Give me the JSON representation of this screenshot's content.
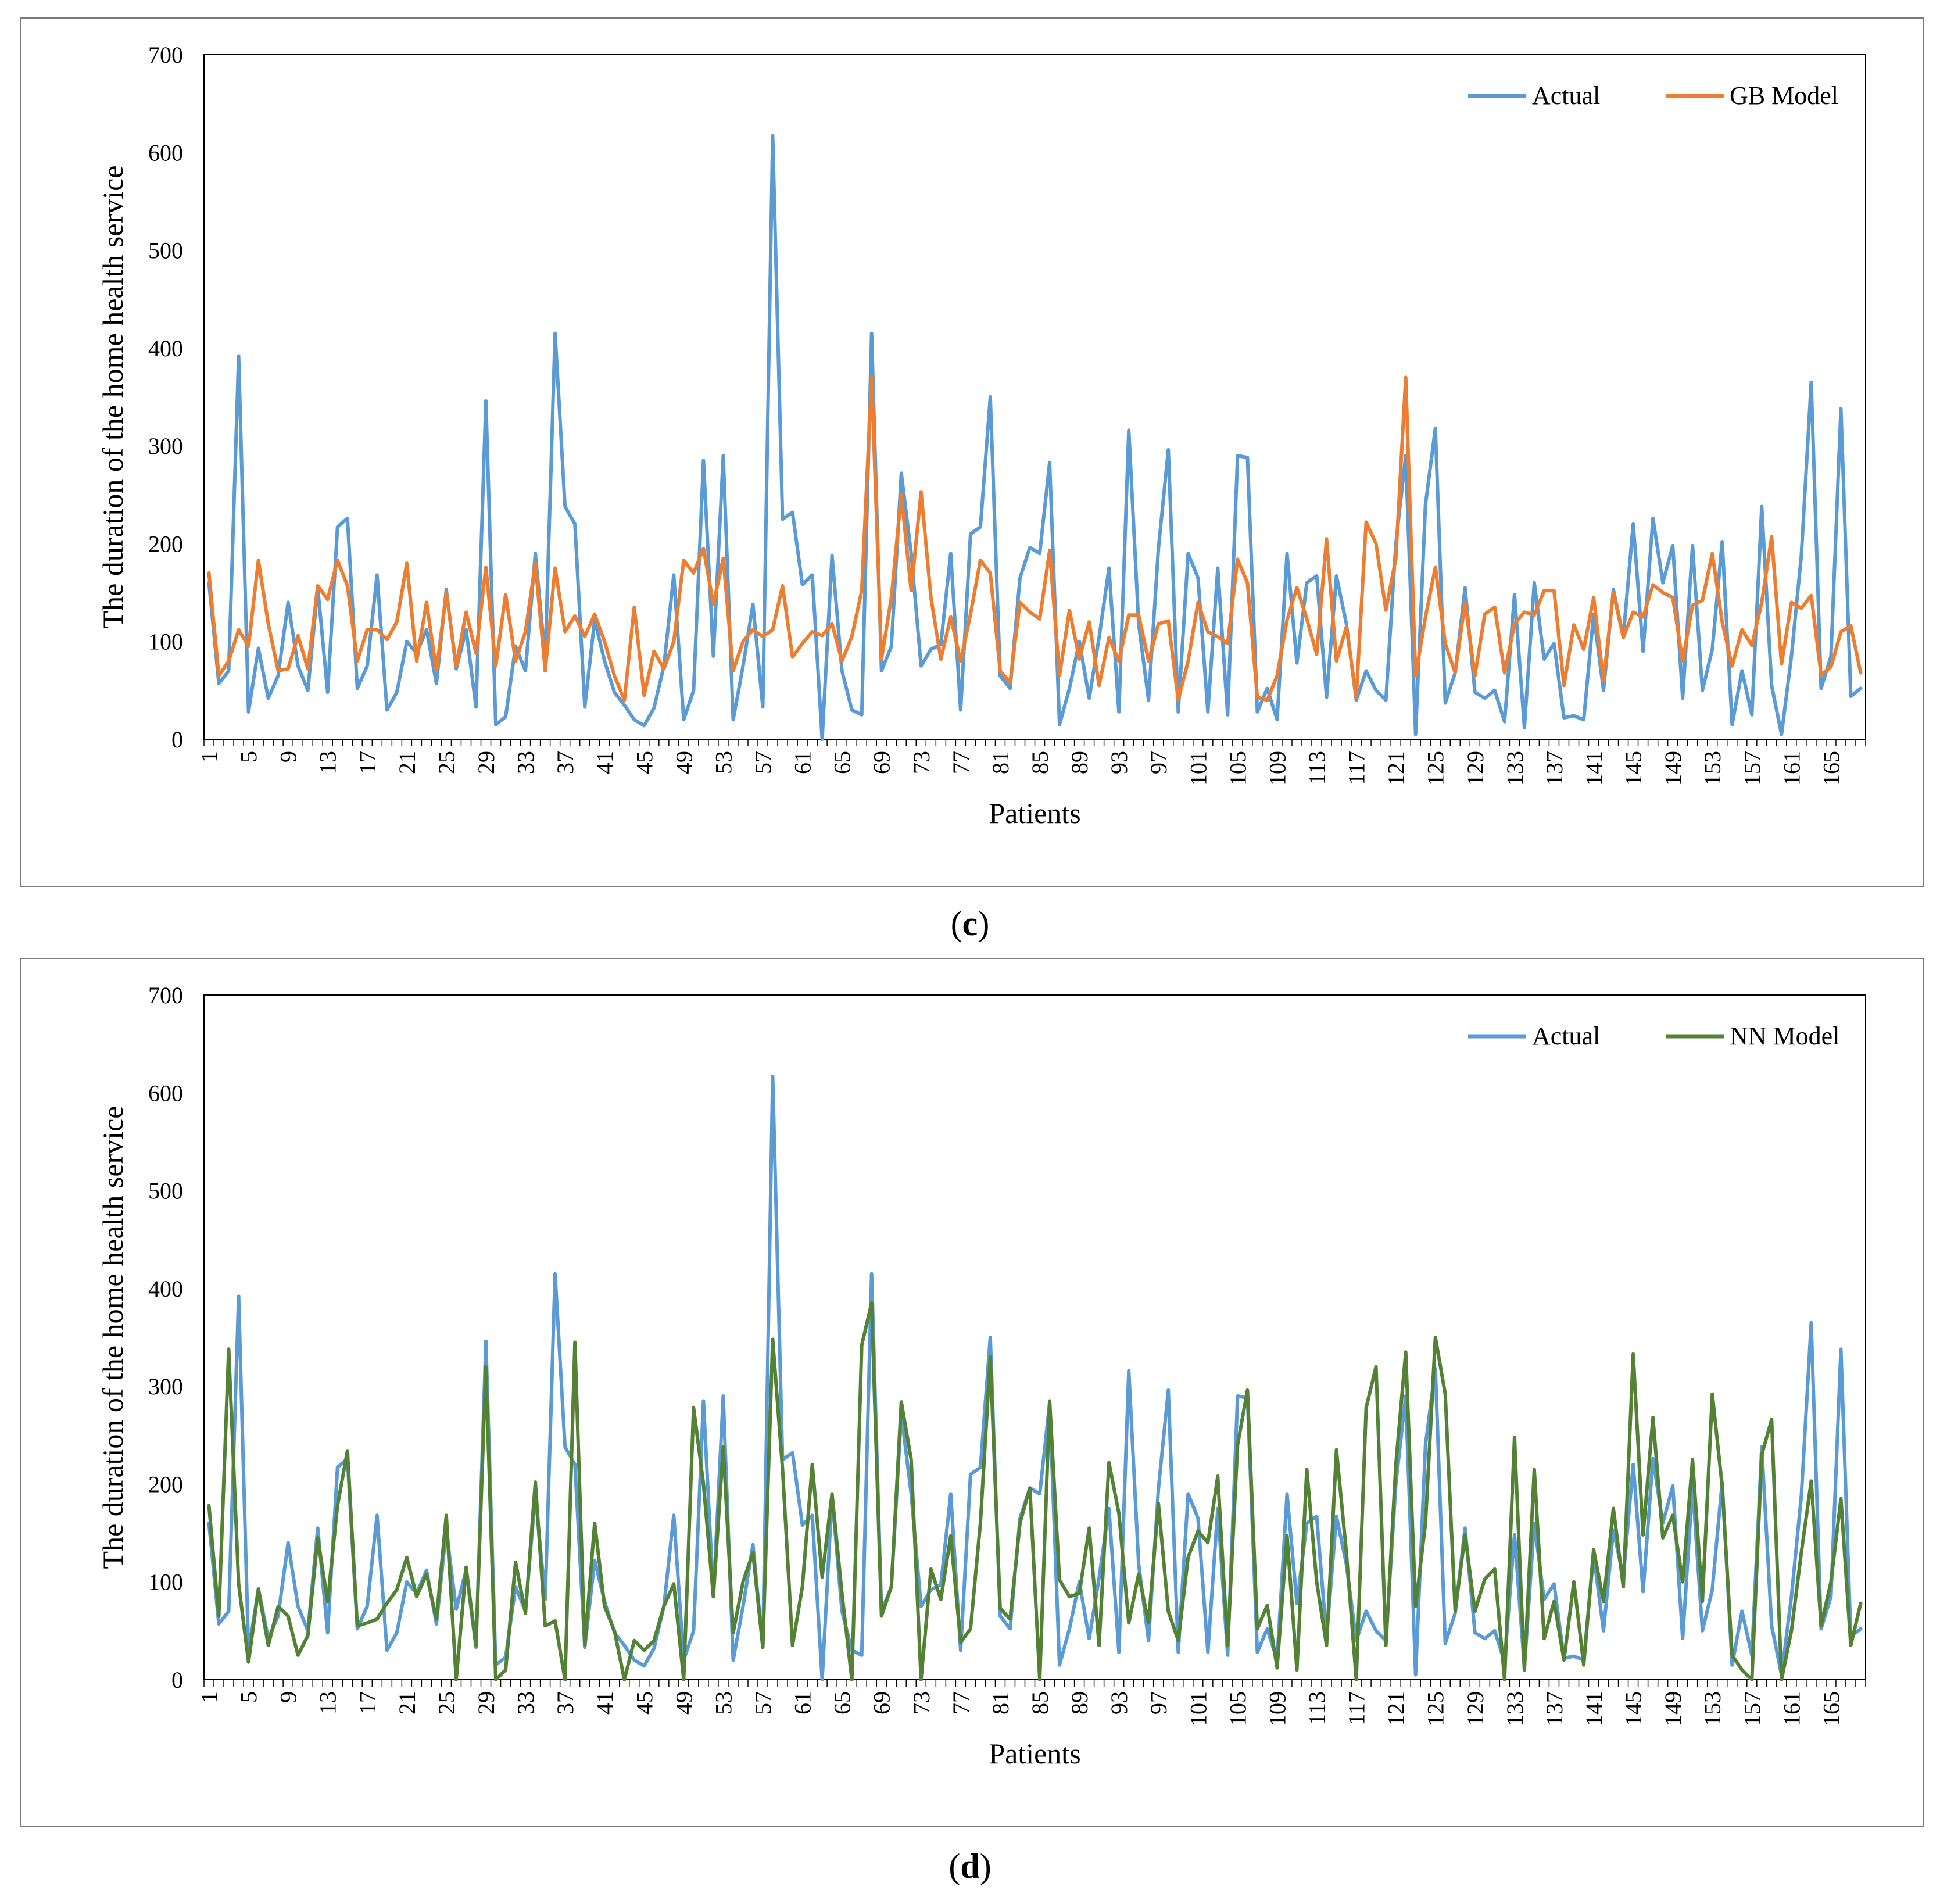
{
  "chart_data": [
    {
      "type": "line",
      "panel_label": "c",
      "xlabel": "Patients",
      "ylabel": "The duration of the home health service",
      "ylim": [
        0,
        700
      ],
      "yticks": [
        "0",
        "100",
        "200",
        "300",
        "400",
        "500",
        "600",
        "700"
      ],
      "xticks": [
        1,
        5,
        9,
        13,
        17,
        21,
        25,
        29,
        33,
        37,
        41,
        45,
        49,
        53,
        57,
        61,
        65,
        69,
        73,
        77,
        81,
        85,
        89,
        93,
        97,
        101,
        105,
        109,
        113,
        117,
        121,
        125,
        129,
        133,
        137,
        141,
        145,
        149,
        153,
        157,
        161,
        165
      ],
      "legend_position": "top-right",
      "series": [
        {
          "name": "Actual",
          "color": "#5b9bd5",
          "values": [
            160,
            57,
            70,
            392,
            28,
            93,
            42,
            65,
            140,
            75,
            50,
            155,
            48,
            217,
            226,
            52,
            75,
            168,
            30,
            48,
            100,
            88,
            112,
            57,
            153,
            72,
            112,
            33,
            346,
            15,
            23,
            95,
            70,
            190,
            82,
            415,
            238,
            220,
            33,
            122,
            80,
            48,
            35,
            20,
            14,
            32,
            75,
            168,
            20,
            50,
            285,
            85,
            290,
            20,
            75,
            138,
            33,
            617,
            225,
            232,
            158,
            168,
            0,
            188,
            70,
            30,
            25,
            415,
            70,
            95,
            272,
            190,
            75,
            92,
            97,
            190,
            30,
            210,
            217,
            350,
            65,
            52,
            165,
            196,
            190,
            283,
            15,
            52,
            100,
            42,
            104,
            175,
            28,
            316,
            118,
            40,
            195,
            296,
            28,
            190,
            165,
            28,
            175,
            25,
            290,
            288,
            28,
            52,
            20,
            190,
            78,
            160,
            167,
            43,
            167,
            118,
            40,
            70,
            50,
            40,
            200,
            290,
            5,
            240,
            318,
            37,
            68,
            155,
            48,
            42,
            50,
            18,
            148,
            12,
            160,
            82,
            98,
            22,
            24,
            20,
            128,
            50,
            153,
            105,
            220,
            90,
            226,
            160,
            198,
            42,
            198,
            50,
            92,
            202,
            15,
            70,
            25,
            238,
            55,
            5,
            85,
            188,
            365,
            52,
            85,
            338,
            44,
            52
          ]
        },
        {
          "name": "GB Model",
          "color": "#ed7d31",
          "values": [
            170,
            65,
            80,
            112,
            95,
            183,
            118,
            70,
            72,
            106,
            72,
            157,
            143,
            183,
            157,
            80,
            112,
            112,
            102,
            120,
            180,
            80,
            140,
            70,
            150,
            75,
            130,
            88,
            176,
            75,
            148,
            80,
            110,
            180,
            70,
            175,
            110,
            126,
            105,
            128,
            100,
            65,
            40,
            135,
            45,
            90,
            72,
            100,
            183,
            170,
            195,
            138,
            185,
            70,
            100,
            112,
            105,
            112,
            157,
            84,
            98,
            110,
            106,
            118,
            80,
            105,
            152,
            370,
            82,
            145,
            250,
            152,
            253,
            145,
            82,
            125,
            80,
            128,
            183,
            170,
            70,
            58,
            140,
            130,
            123,
            193,
            65,
            132,
            82,
            120,
            55,
            104,
            80,
            127,
            127,
            80,
            118,
            121,
            40,
            80,
            140,
            110,
            105,
            98,
            184,
            160,
            43,
            40,
            65,
            122,
            155,
            123,
            87,
            205,
            80,
            115,
            43,
            222,
            200,
            132,
            185,
            370,
            65,
            125,
            176,
            98,
            68,
            140,
            65,
            128,
            135,
            68,
            118,
            130,
            127,
            152,
            152,
            55,
            117,
            92,
            145,
            60,
            150,
            104,
            130,
            125,
            158,
            150,
            145,
            80,
            137,
            142,
            190,
            120,
            75,
            112,
            96,
            140,
            207,
            77,
            140,
            134,
            147,
            66,
            74,
            110,
            116,
            68
          ]
        }
      ]
    },
    {
      "type": "line",
      "panel_label": "d",
      "xlabel": "Patients",
      "ylabel": "The duration of the home health service",
      "ylim": [
        0,
        700
      ],
      "yticks": [
        "0",
        "100",
        "200",
        "300",
        "400",
        "500",
        "600",
        "700"
      ],
      "xticks": [
        1,
        5,
        9,
        13,
        17,
        21,
        25,
        29,
        33,
        37,
        41,
        45,
        49,
        53,
        57,
        61,
        65,
        69,
        73,
        77,
        81,
        85,
        89,
        93,
        97,
        101,
        105,
        109,
        113,
        117,
        121,
        125,
        129,
        133,
        137,
        141,
        145,
        149,
        153,
        157,
        161,
        165
      ],
      "legend_position": "top-right",
      "series": [
        {
          "name": "Actual",
          "color": "#5b9bd5",
          "values": [
            160,
            57,
            70,
            392,
            28,
            93,
            42,
            65,
            140,
            75,
            50,
            155,
            48,
            217,
            226,
            52,
            75,
            168,
            30,
            48,
            100,
            88,
            112,
            57,
            153,
            72,
            112,
            33,
            346,
            15,
            23,
            95,
            70,
            190,
            82,
            415,
            238,
            220,
            33,
            122,
            80,
            48,
            35,
            20,
            14,
            32,
            75,
            168,
            20,
            50,
            285,
            85,
            290,
            20,
            75,
            138,
            33,
            617,
            225,
            232,
            158,
            168,
            0,
            188,
            70,
            30,
            25,
            415,
            70,
            95,
            272,
            190,
            75,
            92,
            97,
            190,
            30,
            210,
            217,
            350,
            65,
            52,
            165,
            196,
            190,
            283,
            15,
            52,
            100,
            42,
            104,
            175,
            28,
            316,
            118,
            40,
            195,
            296,
            28,
            190,
            165,
            28,
            175,
            25,
            290,
            288,
            28,
            52,
            20,
            190,
            78,
            160,
            167,
            43,
            167,
            118,
            40,
            70,
            50,
            40,
            200,
            290,
            5,
            240,
            318,
            37,
            68,
            155,
            48,
            42,
            50,
            18,
            148,
            12,
            160,
            82,
            98,
            22,
            24,
            20,
            128,
            50,
            153,
            105,
            220,
            90,
            226,
            160,
            198,
            42,
            198,
            50,
            92,
            202,
            15,
            70,
            25,
            238,
            55,
            5,
            85,
            188,
            365,
            52,
            85,
            338,
            44,
            52
          ]
        },
        {
          "name": "NN Model",
          "color": "#548235",
          "values": [
            178,
            65,
            338,
            98,
            18,
            92,
            35,
            75,
            65,
            25,
            45,
            145,
            80,
            178,
            234,
            55,
            58,
            62,
            78,
            92,
            125,
            85,
            108,
            62,
            168,
            0,
            115,
            35,
            320,
            0,
            10,
            120,
            68,
            202,
            55,
            60,
            0,
            345,
            35,
            160,
            75,
            50,
            0,
            40,
            30,
            40,
            75,
            98,
            0,
            278,
            200,
            85,
            238,
            48,
            100,
            130,
            33,
            348,
            215,
            35,
            95,
            220,
            105,
            190,
            88,
            0,
            342,
            385,
            65,
            95,
            284,
            225,
            0,
            113,
            82,
            147,
            38,
            52,
            160,
            330,
            73,
            62,
            160,
            196,
            0,
            285,
            102,
            85,
            88,
            155,
            35,
            222,
            170,
            58,
            108,
            58,
            180,
            70,
            40,
            125,
            152,
            140,
            208,
            35,
            240,
            296,
            52,
            76,
            12,
            147,
            10,
            215,
            100,
            35,
            235,
            130,
            0,
            278,
            320,
            35,
            220,
            335,
            75,
            160,
            350,
            292,
            70,
            148,
            70,
            103,
            113,
            0,
            248,
            10,
            215,
            42,
            80,
            20,
            100,
            15,
            133,
            80,
            175,
            95,
            333,
            148,
            268,
            145,
            168,
            100,
            225,
            80,
            292,
            198,
            25,
            10,
            0,
            230,
            266,
            0,
            50,
            130,
            203,
            55,
            100,
            185,
            35,
            78
          ]
        }
      ]
    }
  ]
}
